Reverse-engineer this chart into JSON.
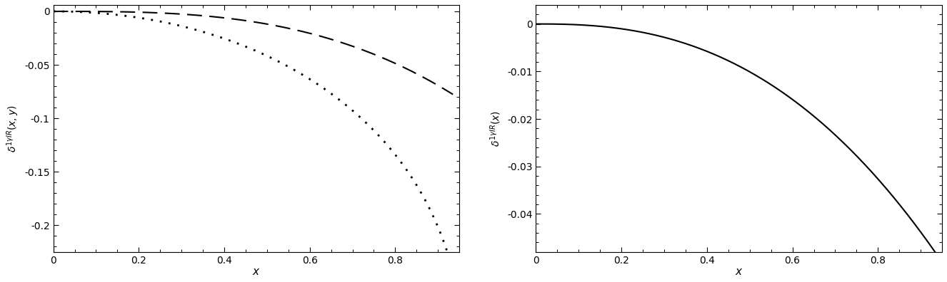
{
  "left_ylabel": "$\\delta^{1\\gamma IR}(x,y)$",
  "right_ylabel": "$\\delta^{1\\gamma IR}(x)$",
  "xlabel": "$x$",
  "left_ylim": [
    -0.225,
    0.006
  ],
  "right_ylim": [
    -0.048,
    0.004
  ],
  "left_yticks": [
    0.0,
    -0.05,
    -0.1,
    -0.15,
    -0.2
  ],
  "right_yticks": [
    0.0,
    -0.01,
    -0.02,
    -0.03,
    -0.04
  ],
  "xticks": [
    0.0,
    0.2,
    0.4,
    0.6,
    0.8
  ],
  "xlim": [
    0.0,
    0.95
  ],
  "x_max": 0.935,
  "n_points": 800,
  "line_color": "#000000",
  "background_color": "#ffffff",
  "dashed_A": 0.095,
  "dashed_exp": 3.0,
  "dotted_A": 0.26,
  "dotted_exp": 2.0,
  "dotted_B": 0.55,
  "solid_A": 0.052,
  "solid_exp": 2.8
}
